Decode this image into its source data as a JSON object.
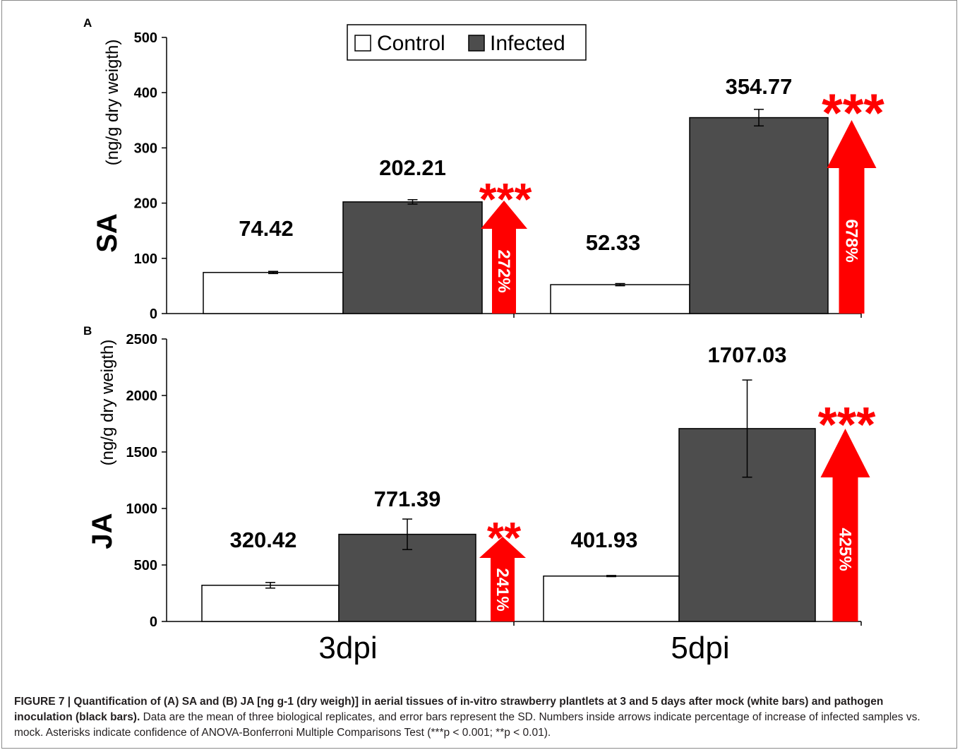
{
  "chart_data": [
    {
      "type": "bar",
      "panel_label": "A",
      "ylabel_main": "SA",
      "ylabel_unit": "(ng/g dry weigth)",
      "ylim": [
        0,
        500
      ],
      "yticks": [
        "0",
        "100",
        "200",
        "300",
        "400",
        "500"
      ],
      "categories": [
        "3dpi",
        "5dpi"
      ],
      "series": [
        {
          "name": "Control",
          "values": [
            74.42,
            52.33
          ],
          "error": [
            2,
            2
          ],
          "color": "#ffffff"
        },
        {
          "name": "Infected",
          "values": [
            202.21,
            354.77
          ],
          "error": [
            4,
            15
          ],
          "color": "#4d4d4d"
        }
      ],
      "data_labels": {
        "control": [
          "74.42",
          "52.33"
        ],
        "infected": [
          "202.21",
          "354.77"
        ]
      },
      "increase_labels": [
        "272%",
        "678%"
      ],
      "significance": [
        "***",
        "***"
      ],
      "legend": {
        "position": "top",
        "entries": [
          "Control",
          "Infected"
        ]
      }
    },
    {
      "type": "bar",
      "panel_label": "B",
      "ylabel_main": "JA",
      "ylabel_unit": "(ng/g dry weigth)",
      "ylim": [
        0,
        2500
      ],
      "yticks": [
        "0",
        "500",
        "1000",
        "1500",
        "2000",
        "2500"
      ],
      "categories": [
        "3dpi",
        "5dpi"
      ],
      "series": [
        {
          "name": "Control",
          "values": [
            320.42,
            401.93
          ],
          "error": [
            25,
            5
          ],
          "color": "#ffffff"
        },
        {
          "name": "Infected",
          "values": [
            771.39,
            1707.03
          ],
          "error": [
            135,
            430
          ],
          "color": "#4d4d4d"
        }
      ],
      "data_labels": {
        "control": [
          "320.42",
          "401.93"
        ],
        "infected": [
          "771.39",
          "1707.03"
        ]
      },
      "increase_labels": [
        "241%",
        "425%"
      ],
      "significance": [
        "**",
        "***"
      ]
    }
  ],
  "xtick_labels": [
    "3dpi",
    "5dpi"
  ],
  "colors": {
    "arrow": "#ff0000",
    "infected_bar": "#4d4d4d",
    "control_bar": "#ffffff",
    "axis": "#000000"
  },
  "caption": {
    "bold_part": "FIGURE 7 | Quantification of (A) SA and (B) JA [ng g-1 (dry weigh)] in aerial tissues of in-vitro strawberry plantlets at 3 and 5 days after mock (white bars) and pathogen inoculation (black bars).",
    "normal_part": " Data are the mean of three biological replicates, and error bars represent the SD. Numbers inside arrows indicate percentage of increase of infected samples vs. mock. Asterisks indicate confidence of ANOVA-Bonferroni Multiple Comparisons Test (***p < 0.001; **p < 0.01)."
  }
}
